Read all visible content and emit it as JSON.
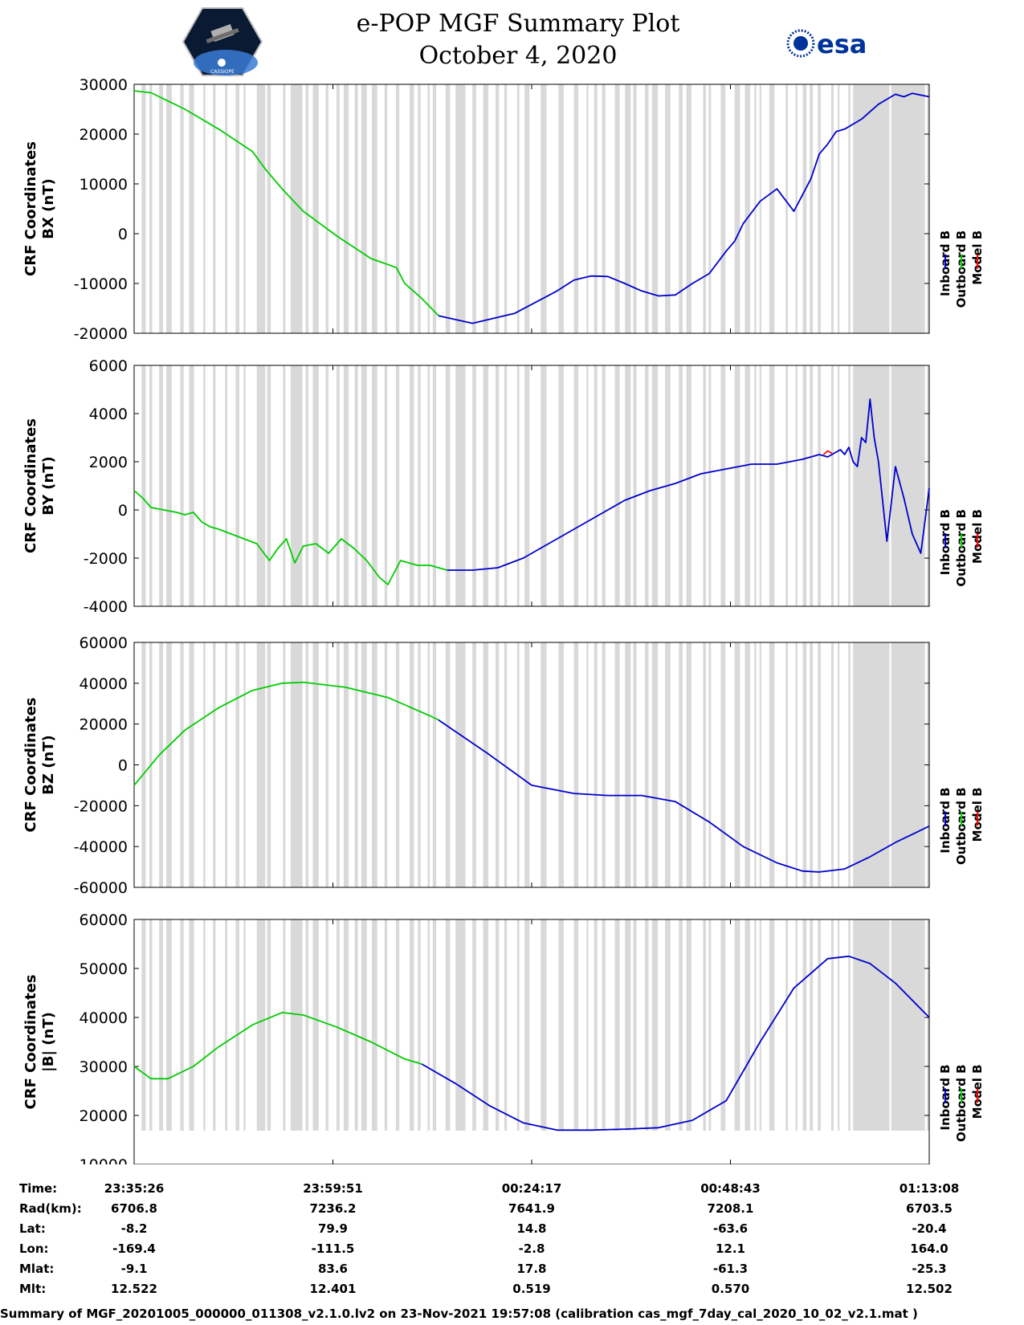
{
  "header": {
    "title_line1": "e-POP MGF Summary Plot",
    "title_line2": "October 4, 2020",
    "left_logo": "cassiope-mission-logo",
    "left_logo_text": "CASSIOPE",
    "right_logo": "esa-logo",
    "right_logo_text": "esa"
  },
  "colors": {
    "inboard": "#0000cc",
    "outboard": "#00cc00",
    "model": "#ff0000",
    "shading": "#d9d9d9"
  },
  "legend": [
    "Inboard B",
    "Outboard B",
    "Model B"
  ],
  "chart_data": [
    {
      "type": "line",
      "ylabel_line1": "CRF Coordinates",
      "ylabel_line2": "BX (nT)",
      "ylim": [
        -20000,
        30000
      ],
      "yticks": [
        "30000",
        "20000",
        "10000",
        "0",
        "-10000",
        "-20000"
      ],
      "series": [
        {
          "name": "Outboard B",
          "x": [
            0,
            20,
            60,
            100,
            140,
            155,
            175,
            200,
            240,
            280,
            310,
            320,
            340,
            360
          ],
          "values": [
            28700,
            28300,
            25000,
            21000,
            16500,
            13000,
            9000,
            4500,
            -500,
            -5000,
            -6800,
            -10000,
            -13000,
            -16500
          ]
        },
        {
          "name": "Inboard B",
          "x": [
            360,
            400,
            450,
            500,
            520,
            540,
            560,
            580,
            600,
            620,
            640,
            660,
            680,
            700,
            710,
            720,
            740,
            760,
            780,
            800,
            810,
            820,
            830,
            840,
            860,
            880,
            900,
            910,
            920,
            940
          ],
          "values": [
            -16500,
            -18000,
            -16000,
            -11500,
            -9300,
            -8500,
            -8600,
            -10000,
            -11500,
            -12500,
            -12300,
            -10000,
            -8000,
            -3500,
            -1500,
            2000,
            6500,
            9000,
            4500,
            11000,
            16000,
            18000,
            20500,
            21000,
            23000,
            26000,
            28000,
            27500,
            28200,
            27500
          ]
        },
        {
          "name": "Model B",
          "x": [
            360,
            500,
            700,
            940
          ],
          "values": [
            -16500,
            -11500,
            -3500,
            27500
          ]
        }
      ]
    },
    {
      "type": "line",
      "ylabel_line1": "CRF Coordinates",
      "ylabel_line2": "BY (nT)",
      "ylim": [
        -4000,
        6000
      ],
      "yticks": [
        "6000",
        "4000",
        "2000",
        "0",
        "-2000",
        "-4000"
      ],
      "series": [
        {
          "name": "Outboard B",
          "x": [
            0,
            10,
            20,
            35,
            50,
            60,
            70,
            80,
            90,
            100,
            115,
            130,
            145,
            160,
            170,
            180,
            190,
            200,
            215,
            230,
            245,
            260,
            275,
            290,
            300,
            315,
            335,
            350,
            360,
            370
          ],
          "values": [
            800,
            500,
            100,
            0,
            -100,
            -200,
            -100,
            -500,
            -700,
            -800,
            -1000,
            -1200,
            -1400,
            -2100,
            -1600,
            -1200,
            -2200,
            -1500,
            -1400,
            -1800,
            -1200,
            -1600,
            -2100,
            -2800,
            -3100,
            -2100,
            -2300,
            -2300,
            -2400,
            -2500
          ]
        },
        {
          "name": "Inboard B",
          "x": [
            370,
            400,
            430,
            460,
            490,
            520,
            550,
            580,
            610,
            640,
            670,
            700,
            730,
            760,
            790,
            810,
            820,
            830,
            835,
            840,
            845,
            850,
            855,
            860,
            865,
            870,
            875,
            880,
            890,
            900,
            910,
            920,
            930,
            940
          ],
          "values": [
            -2500,
            -2500,
            -2400,
            -2000,
            -1400,
            -800,
            -200,
            400,
            800,
            1100,
            1500,
            1700,
            1900,
            1900,
            2100,
            2300,
            2200,
            2400,
            2500,
            2300,
            2600,
            2000,
            1800,
            3000,
            2800,
            4600,
            3000,
            2000,
            -1300,
            1800,
            500,
            -1000,
            -1800,
            900
          ]
        },
        {
          "name": "Model B",
          "x": [
            815,
            820,
            825
          ],
          "values": [
            2300,
            2450,
            2350
          ]
        }
      ]
    },
    {
      "type": "line",
      "ylabel_line1": "CRF Coordinates",
      "ylabel_line2": "BZ (nT)",
      "ylim": [
        -60000,
        60000
      ],
      "yticks": [
        "60000",
        "40000",
        "20000",
        "0",
        "-20000",
        "-40000",
        "-60000"
      ],
      "series": [
        {
          "name": "Outboard B",
          "x": [
            0,
            30,
            60,
            100,
            140,
            175,
            200,
            250,
            300,
            350,
            360
          ],
          "values": [
            -10000,
            5000,
            17000,
            28000,
            36500,
            40000,
            40500,
            38000,
            33000,
            24000,
            22000
          ]
        },
        {
          "name": "Inboard B",
          "x": [
            360,
            420,
            470,
            520,
            560,
            600,
            640,
            680,
            720,
            760,
            790,
            810,
            840,
            870,
            900,
            940
          ],
          "values": [
            22000,
            5000,
            -10000,
            -14000,
            -15000,
            -15000,
            -18000,
            -28000,
            -40000,
            -48000,
            -52000,
            -52500,
            -51000,
            -45000,
            -38000,
            -30000
          ]
        },
        {
          "name": "Model B",
          "x": [
            0,
            200,
            360,
            940
          ],
          "values": [
            -10000,
            40500,
            22000,
            -30000
          ]
        }
      ]
    },
    {
      "type": "line",
      "ylabel_line1": "CRF Coordinates",
      "ylabel_line2": "|B| (nT)",
      "ylim": [
        10000,
        60000
      ],
      "yticks": [
        "60000",
        "50000",
        "40000",
        "30000",
        "20000",
        "10000"
      ],
      "series": [
        {
          "name": "Outboard B",
          "x": [
            0,
            20,
            40,
            70,
            100,
            140,
            175,
            200,
            240,
            280,
            320,
            340
          ],
          "values": [
            30000,
            27500,
            27500,
            30000,
            34000,
            38500,
            41000,
            40500,
            38000,
            35000,
            31500,
            30500
          ]
        },
        {
          "name": "Inboard B",
          "x": [
            340,
            380,
            420,
            460,
            500,
            540,
            580,
            620,
            660,
            700,
            740,
            780,
            820,
            845,
            870,
            900,
            940
          ],
          "values": [
            30500,
            26500,
            22000,
            18500,
            17000,
            17000,
            17200,
            17500,
            19000,
            23000,
            35000,
            46000,
            52000,
            52500,
            51000,
            47000,
            40000
          ]
        },
        {
          "name": "Model B",
          "x": [
            0,
            175,
            340,
            840,
            940
          ],
          "values": [
            30000,
            41000,
            30500,
            52500,
            40000
          ]
        }
      ]
    }
  ],
  "time_axis": {
    "row_labels": [
      "Time:",
      "Rad(km):",
      "Lat:",
      "Lon:",
      "Mlat:",
      "Mlt:"
    ],
    "columns": [
      [
        "23:35:26",
        "6706.8",
        "-8.2",
        "-169.4",
        "-9.1",
        "12.522"
      ],
      [
        "23:59:51",
        "7236.2",
        "79.9",
        "-111.5",
        "83.6",
        "12.401"
      ],
      [
        "00:24:17",
        "7641.9",
        "14.8",
        "-2.8",
        "17.8",
        "0.519"
      ],
      [
        "00:48:43",
        "7208.1",
        "-63.6",
        "12.1",
        "-61.3",
        "0.570"
      ],
      [
        "01:13:08",
        "6703.5",
        "-20.4",
        "164.0",
        "-25.3",
        "12.502"
      ]
    ]
  },
  "footer": "Summary of MGF_20201005_000000_011308_v2.1.0.lv2 on 23-Nov-2021 19:57:08 (calibration cas_mgf_7day_cal_2020_10_02_v2.1.mat )"
}
